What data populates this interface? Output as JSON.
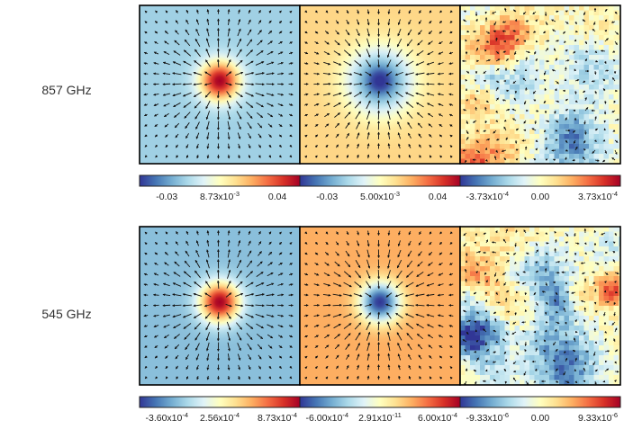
{
  "rows": [
    {
      "label": "857 GHz",
      "panels": [
        {
          "kind": "source",
          "sign": 1,
          "bg": 0.28,
          "ticks": [
            {
              "m": "-0.03"
            },
            {
              "m": "8.73x10",
              "e": "-3"
            },
            {
              "m": "0.04"
            }
          ]
        },
        {
          "kind": "source",
          "sign": -1,
          "bg": 0.62,
          "soft": true,
          "ticks": [
            {
              "m": "-0.03"
            },
            {
              "m": "5.00x10",
              "e": "-3"
            },
            {
              "m": "0.04"
            }
          ]
        },
        {
          "kind": "noise",
          "seed": 7,
          "ticks": [
            {
              "m": "-3.73x10",
              "e": "-4"
            },
            {
              "m": "0.00"
            },
            {
              "m": "3.73x10",
              "e": "-4"
            }
          ]
        }
      ]
    },
    {
      "label": "545 GHz",
      "panels": [
        {
          "kind": "source",
          "sign": 1,
          "bg": 0.24,
          "ticks": [
            {
              "m": "-3.60x10",
              "e": "-4"
            },
            {
              "m": "2.56x10",
              "e": "-4"
            },
            {
              "m": "8.73x10",
              "e": "-4"
            }
          ]
        },
        {
          "kind": "source",
          "sign": -1,
          "bg": 0.7,
          "ticks": [
            {
              "m": "-6.00x10",
              "e": "-4"
            },
            {
              "m": "2.91x10",
              "e": "-11"
            },
            {
              "m": "6.00x10",
              "e": "-4"
            }
          ]
        },
        {
          "kind": "noise",
          "seed": 23,
          "ticks": [
            {
              "m": "-9.33x10",
              "e": "-6"
            },
            {
              "m": "0.00"
            },
            {
              "m": "9.33x10",
              "e": "-6"
            }
          ]
        }
      ]
    }
  ],
  "colormap": [
    "#313695",
    "#4575b4",
    "#74add1",
    "#abd9e9",
    "#e0f3f8",
    "#ffffbf",
    "#fee090",
    "#fdae61",
    "#f46d43",
    "#d73027",
    "#a50026"
  ]
}
